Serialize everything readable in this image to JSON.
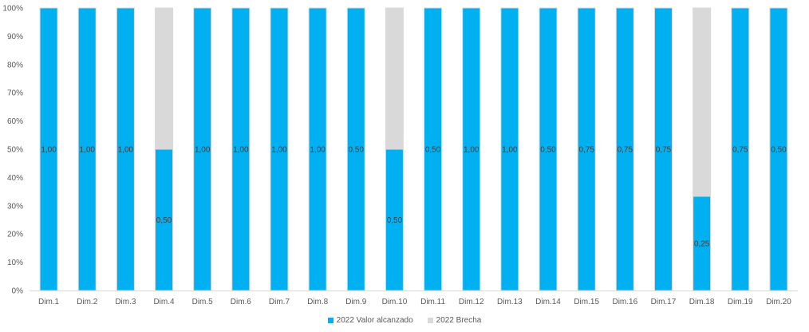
{
  "chart_data": {
    "type": "bar",
    "stacked": true,
    "percent": true,
    "categories": [
      "Dim.1",
      "Dim.2",
      "Dim.3",
      "Dim.4",
      "Dim.5",
      "Dim.6",
      "Dim.7",
      "Dim.8",
      "Dim.9",
      "Dim.10",
      "Dim.11",
      "Dim.12",
      "Dim.13",
      "Dim.14",
      "Dim.15",
      "Dim.16",
      "Dim.17",
      "Dim.18",
      "Dim.19",
      "Dim.20"
    ],
    "series": [
      {
        "name": "2022 Valor alcanzado",
        "color": "#00b0f0",
        "values": [
          1.0,
          1.0,
          1.0,
          0.5,
          1.0,
          1.0,
          1.0,
          1.0,
          0.5,
          0.5,
          0.5,
          1.0,
          1.0,
          0.5,
          0.75,
          0.75,
          0.75,
          0.25,
          0.75,
          0.5
        ],
        "labels": [
          "1,00",
          "1,00",
          "1,00",
          "0,50",
          "1,00",
          "1,00",
          "1,00",
          "1,00",
          "0,50",
          "0,50",
          "0,50",
          "1,00",
          "1,00",
          "0,50",
          "0,75",
          "0,75",
          "0,75",
          "0,25",
          "0,75",
          "0,50"
        ]
      },
      {
        "name": "2022 Brecha",
        "color": "#d9d9d9",
        "values": [
          0,
          0,
          0,
          0.5,
          0,
          0,
          0,
          0,
          0,
          0.5,
          0,
          0,
          0,
          0,
          0,
          0,
          0,
          0.5,
          0,
          0
        ]
      }
    ],
    "ylim": [
      0,
      100
    ],
    "yticks": [
      "0%",
      "10%",
      "20%",
      "30%",
      "40%",
      "50%",
      "60%",
      "70%",
      "80%",
      "90%",
      "100%"
    ],
    "legend_position": "bottom"
  }
}
